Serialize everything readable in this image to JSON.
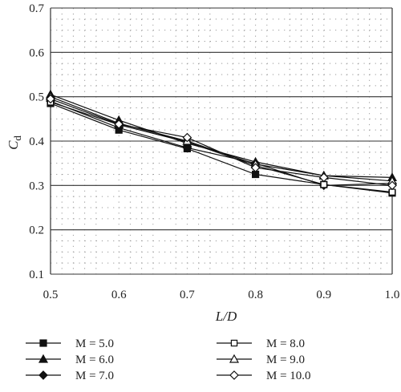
{
  "chart_data": {
    "type": "line",
    "xlabel": "L/D",
    "ylabel": "Cd",
    "ylabel_main": "C",
    "ylabel_sub": "d",
    "xlim": [
      0.5,
      1.0
    ],
    "ylim": [
      0.1,
      0.7
    ],
    "x": [
      0.5,
      0.6,
      0.7,
      0.8,
      0.9,
      1.0
    ],
    "x_tick_labels": [
      "0.5",
      "0.6",
      "0.7",
      "0.8",
      "0.9",
      "1.0"
    ],
    "y_ticks": [
      0.1,
      0.2,
      0.3,
      0.4,
      0.5,
      0.6,
      0.7
    ],
    "y_tick_labels": [
      "0.1",
      "0.2",
      "0.3",
      "0.4",
      "0.5",
      "0.6",
      "0.7"
    ],
    "grid": "major solid horizontal lines, dotted minor grid",
    "legend_position": "bottom, two columns",
    "series": [
      {
        "name": "M = 5.0",
        "marker": "filled-square",
        "values": [
          0.485,
          0.425,
          0.383,
          0.325,
          0.302,
          0.283
        ]
      },
      {
        "name": "M = 6.0",
        "marker": "filled-triangle",
        "values": [
          0.505,
          0.447,
          0.395,
          0.353,
          0.322,
          0.318
        ]
      },
      {
        "name": "M = 7.0",
        "marker": "filled-diamond",
        "values": [
          0.49,
          0.43,
          0.385,
          0.35,
          0.3,
          0.305
        ]
      },
      {
        "name": "M = 8.0",
        "marker": "open-square",
        "values": [
          0.488,
          0.437,
          0.398,
          0.345,
          0.302,
          0.285
        ]
      },
      {
        "name": "M = 9.0",
        "marker": "open-triangle",
        "values": [
          0.5,
          0.44,
          0.4,
          0.348,
          0.322,
          0.31
        ]
      },
      {
        "name": "M = 10.0",
        "marker": "open-diamond",
        "values": [
          0.495,
          0.438,
          0.408,
          0.34,
          0.318,
          0.3
        ]
      }
    ]
  }
}
